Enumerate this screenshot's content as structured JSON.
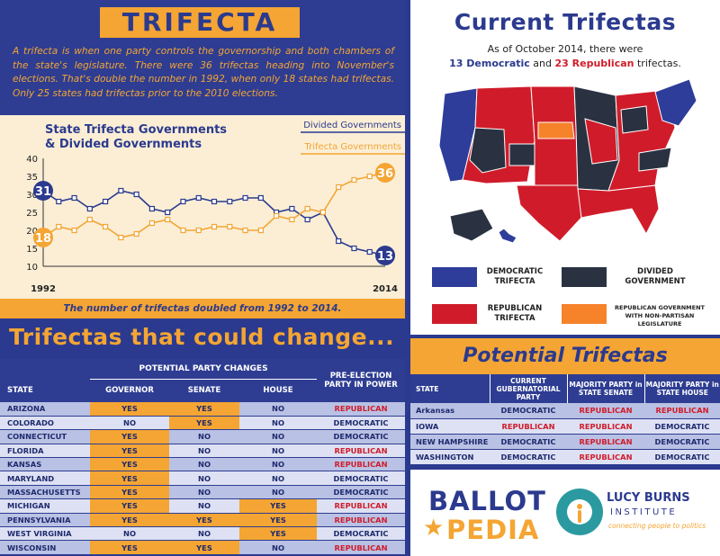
{
  "title": "TRIFECTA",
  "intro": "A trifecta is when one party controls the governorship and both chambers of the state's legislature. There were 36 trifectas heading into November's elections. That's double the number in 1992, when only 18 states had trifectas. Only 25 states had trifectas prior to the 2010 elections.",
  "chart_data": {
    "type": "line",
    "title": "State Trifecta Governments & Divided Governments",
    "title_lines": [
      "State Trifecta Governments",
      "& Divided Governments"
    ],
    "x": [
      1992,
      1993,
      1994,
      1995,
      1996,
      1997,
      1998,
      1999,
      2000,
      2001,
      2002,
      2003,
      2004,
      2005,
      2006,
      2007,
      2008,
      2009,
      2010,
      2011,
      2012,
      2013,
      2014
    ],
    "x_tick_labels": [
      "1992",
      "2014"
    ],
    "ylim": [
      10,
      40
    ],
    "yticks": [
      10,
      15,
      20,
      25,
      30,
      35,
      40
    ],
    "series": [
      {
        "name": "Divided Governments",
        "color": "#2b3a8e",
        "values": [
          31,
          28,
          29,
          26,
          28,
          31,
          30,
          26,
          25,
          28,
          29,
          28,
          28,
          29,
          29,
          25,
          26,
          23,
          25,
          17,
          15,
          14,
          13
        ]
      },
      {
        "name": "Trifecta Governments",
        "color": "#f4a533",
        "values": [
          18,
          21,
          20,
          23,
          21,
          18,
          19,
          22,
          23,
          20,
          20,
          21,
          21,
          20,
          20,
          24,
          23,
          26,
          25,
          32,
          34,
          35,
          36
        ]
      }
    ],
    "endpoint_labels": {
      "start_divided": "31",
      "start_trifecta": "18",
      "end_trifecta": "36",
      "end_divided": "13"
    }
  },
  "caption": "The number of trifectas doubled from 1992 to 2014.",
  "change_heading": "Trifectas that could change...",
  "change_table": {
    "group_header": "POTENTIAL PARTY CHANGES",
    "headers": [
      "STATE",
      "GOVERNOR",
      "SENATE",
      "HOUSE",
      "PRE-ELECTION PARTY IN POWER"
    ],
    "rows": [
      [
        "ARIZONA",
        "YES",
        "YES",
        "NO",
        "REPUBLICAN"
      ],
      [
        "COLORADO",
        "NO",
        "YES",
        "NO",
        "DEMOCRATIC"
      ],
      [
        "CONNECTICUT",
        "YES",
        "NO",
        "NO",
        "DEMOCRATIC"
      ],
      [
        "FLORIDA",
        "YES",
        "NO",
        "NO",
        "REPUBLICAN"
      ],
      [
        "KANSAS",
        "YES",
        "NO",
        "NO",
        "REPUBLICAN"
      ],
      [
        "MARYLAND",
        "YES",
        "NO",
        "NO",
        "DEMOCRATIC"
      ],
      [
        "MASSACHUSETTS",
        "YES",
        "NO",
        "NO",
        "DEMOCRATIC"
      ],
      [
        "MICHIGAN",
        "YES",
        "NO",
        "YES",
        "REPUBLICAN"
      ],
      [
        "PENNSYLVANIA",
        "YES",
        "YES",
        "YES",
        "REPUBLICAN"
      ],
      [
        "WEST VIRGINIA",
        "NO",
        "NO",
        "YES",
        "DEMOCRATIC"
      ],
      [
        "WISCONSIN",
        "YES",
        "YES",
        "NO",
        "REPUBLICAN"
      ]
    ]
  },
  "current": {
    "title": "Current Trifectas",
    "subtitle_line1": "As of October 2014, there were",
    "dem_count": "13 Democratic",
    "and_text": " and ",
    "rep_count": "23 Republican",
    "end_text": " trifectas.",
    "legend": [
      {
        "label": "DEMOCRATIC TRIFECTA",
        "color": "#2e3d9a"
      },
      {
        "label": "DIVIDED GOVERNMENT",
        "color": "#2a3242"
      },
      {
        "label": "REPUBLICAN TRIFECTA",
        "color": "#d01c2a"
      },
      {
        "label": "REPUBLICAN GOVERNMENT WITH NON-PARTISAN LEGISLATURE",
        "color": "#f6822a"
      }
    ]
  },
  "potential": {
    "title": "Potential Trifectas",
    "headers": [
      "STATE",
      "CURRENT GUBERNATORIAL PARTY",
      "MAJORITY PARTY in STATE SENATE",
      "MAJORITY PARTY in STATE HOUSE"
    ],
    "rows": [
      [
        "Arkansas",
        "DEMOCRATIC",
        "REPUBLICAN",
        "REPUBLICAN"
      ],
      [
        "IOWA",
        "REPUBLICAN",
        "REPUBLICAN",
        "DEMOCRATIC"
      ],
      [
        "NEW HAMPSHIRE",
        "DEMOCRATIC",
        "REPUBLICAN",
        "DEMOCRATIC"
      ],
      [
        "WASHINGTON",
        "DEMOCRATIC",
        "REPUBLICAN",
        "DEMOCRATIC"
      ]
    ]
  },
  "logos": {
    "ballot": "BALLOT",
    "pedia": "PEDIA",
    "lbi_name": "LUCY BURNS",
    "lbi_sub": "INSTITUTE",
    "lbi_tag": "connecting people to politics"
  }
}
